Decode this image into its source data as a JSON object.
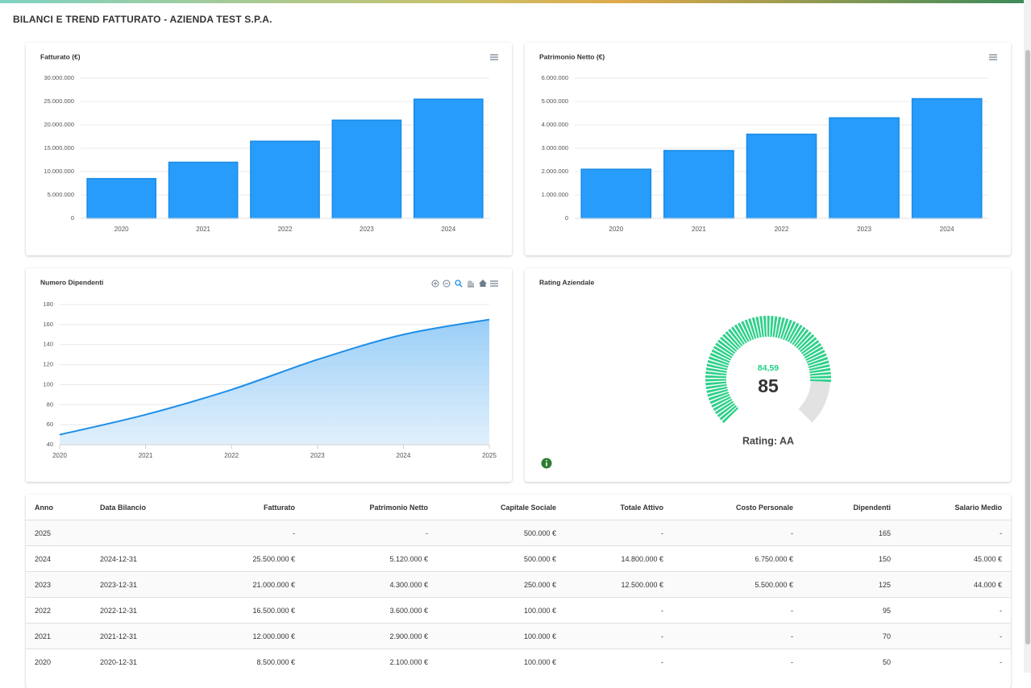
{
  "header": {
    "title": "BILANCI E TREND FATTURATO - AZIENDA TEST S.P.A."
  },
  "chart_data": [
    {
      "type": "bar",
      "title": "Fatturato (€)",
      "categories": [
        "2020",
        "2021",
        "2022",
        "2023",
        "2024"
      ],
      "values": [
        8500000,
        12000000,
        16500000,
        21000000,
        25500000
      ],
      "color": "#279cfb",
      "ylim": [
        0,
        30000000
      ],
      "yticks": [
        0,
        {
          "value": 5000000,
          "label": "5.000.000"
        },
        {
          "value": 10000000,
          "label": "10.000.000"
        },
        {
          "value": 15000000,
          "label": "15.000.000"
        },
        {
          "value": 20000000,
          "label": "20.000.000"
        },
        {
          "value": 25000000,
          "label": "25.000.000"
        },
        {
          "value": 30000000,
          "label": "30.000.000"
        }
      ],
      "grid": true
    },
    {
      "type": "bar",
      "title": "Patrimonio Netto (€)",
      "categories": [
        "2020",
        "2021",
        "2022",
        "2023",
        "2024"
      ],
      "values": [
        2100000,
        2900000,
        3600000,
        4300000,
        5120000
      ],
      "color": "#279cfb",
      "ylim": [
        0,
        6000000
      ],
      "yticks": [
        0,
        {
          "value": 1000000,
          "label": "1.000.000"
        },
        {
          "value": 2000000,
          "label": "2.000.000"
        },
        {
          "value": 3000000,
          "label": "3.000.000"
        },
        {
          "value": 4000000,
          "label": "4.000.000"
        },
        {
          "value": 5000000,
          "label": "5.000.000"
        },
        {
          "value": 6000000,
          "label": "6.000.000"
        }
      ],
      "grid": true
    },
    {
      "type": "area",
      "title": "Numero Dipendenti",
      "x": [
        2020,
        2021,
        2022,
        2023,
        2024,
        2025
      ],
      "values": [
        50,
        70,
        95,
        125,
        150,
        165
      ],
      "color": "#1e8ee8",
      "xlim": [
        2020,
        2025
      ],
      "xticks": [
        2020,
        2021,
        2022,
        2023,
        2024,
        2025
      ],
      "ylim": [
        40,
        180
      ],
      "yticks": [
        40,
        60,
        80,
        100,
        120,
        140,
        160,
        180
      ],
      "grid": true
    },
    {
      "type": "gauge",
      "title": "Rating Aziendale",
      "value": 84.59,
      "value_label": "84,59",
      "score": 85,
      "rating_label": "Rating: AA",
      "ylim": [
        0,
        100
      ],
      "color": "#2fd08a"
    }
  ],
  "table": {
    "columns": [
      "Anno",
      "Data Bilancio",
      "Fatturato",
      "Patrimonio Netto",
      "Capitale Sociale",
      "Totale Attivo",
      "Costo Personale",
      "Dipendenti",
      "Salario Medio"
    ],
    "rows": [
      [
        "2025",
        null,
        "-",
        "-",
        "500.000 €",
        "-",
        "-",
        "165",
        "-"
      ],
      [
        "2024",
        "2024-12-31",
        "25.500.000 €",
        "5.120.000 €",
        "500.000 €",
        "14.800.000 €",
        "6.750.000 €",
        "150",
        "45.000 €"
      ],
      [
        "2023",
        "2023-12-31",
        "21.000.000 €",
        "4.300.000 €",
        "250.000 €",
        "12.500.000 €",
        "5.500.000 €",
        "125",
        "44.000 €"
      ],
      [
        "2022",
        "2022-12-31",
        "16.500.000 €",
        "3.600.000 €",
        "100.000 €",
        "-",
        "-",
        "95",
        "-"
      ],
      [
        "2021",
        "2021-12-31",
        "12.000.000 €",
        "2.900.000 €",
        "100.000 €",
        "-",
        "-",
        "70",
        "-"
      ],
      [
        "2020",
        "2020-12-31",
        "8.500.000 €",
        "2.100.000 €",
        "100.000 €",
        "-",
        "-",
        "50",
        "-"
      ]
    ]
  }
}
